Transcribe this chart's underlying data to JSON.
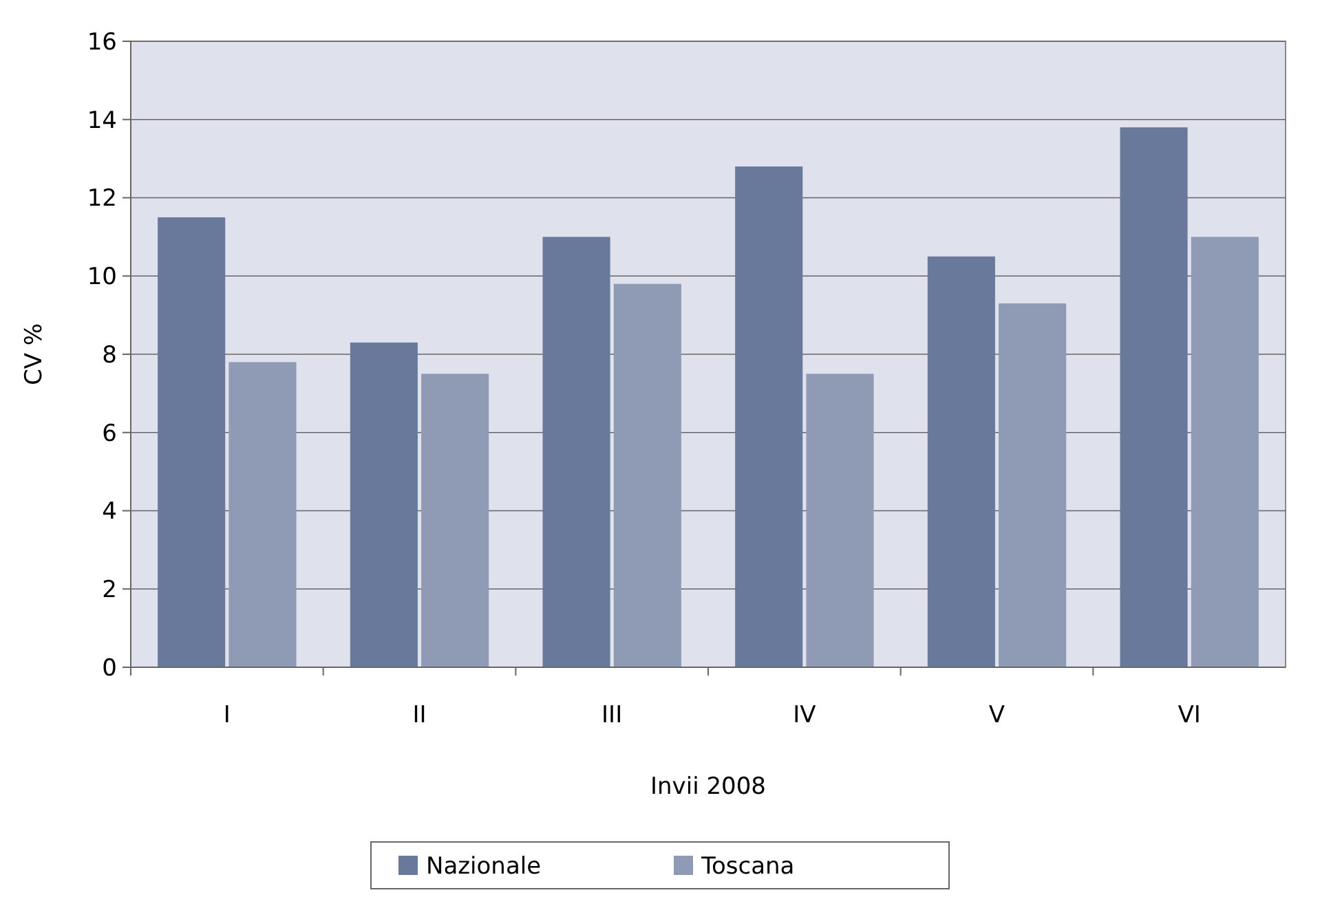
{
  "chart_data": {
    "type": "bar",
    "xlabel": "Invii 2008",
    "ylabel": "CV %",
    "categories": [
      "I",
      "II",
      "III",
      "IV",
      "V",
      "VI"
    ],
    "series": [
      {
        "name": "Nazionale",
        "color": "#68799c",
        "values": [
          11.5,
          8.3,
          11.0,
          12.8,
          10.5,
          13.8
        ]
      },
      {
        "name": "Toscana",
        "color": "#8f9bb5",
        "values": [
          7.8,
          7.5,
          9.8,
          7.5,
          9.3,
          11.0
        ]
      }
    ],
    "ylim": [
      0,
      16
    ],
    "yticks": [
      0,
      2,
      4,
      6,
      8,
      10,
      12,
      14,
      16
    ],
    "grid": "y",
    "legend": "bottom"
  }
}
